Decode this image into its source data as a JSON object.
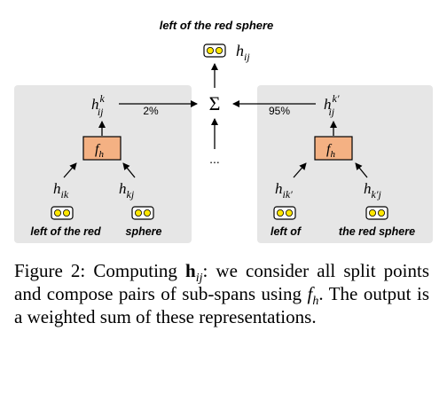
{
  "figure": {
    "top_phrase": "left of the red sphere",
    "top_vec": {
      "base": "h",
      "sub": "ij"
    },
    "sum_symbol": "Σ",
    "ellipsis": "...",
    "left_panel": {
      "out": {
        "base": "h",
        "sub": "ij",
        "sup": "k"
      },
      "weight": "2%",
      "fn": {
        "base": "f",
        "sub": "h"
      },
      "in_left": {
        "base": "h",
        "sub": "ik"
      },
      "in_right": {
        "base": "h",
        "sub": "kj"
      },
      "phrase_left": "left of the red",
      "phrase_right": "sphere"
    },
    "right_panel": {
      "out": {
        "base": "h",
        "sub": "ij",
        "sup": "k′"
      },
      "weight": "95%",
      "fn": {
        "base": "f",
        "sub": "h"
      },
      "in_left": {
        "base": "h",
        "sub": "ik′"
      },
      "in_right": {
        "base": "h",
        "sub": "k′j"
      },
      "phrase_left": "left of",
      "phrase_right": "the red sphere"
    },
    "colors": {
      "panel": "#e6e6e6",
      "fn_box": "#f4b183",
      "vec_fill": "#ffe600",
      "arrow": "#000000"
    }
  },
  "caption": {
    "label": "Figure 2:",
    "t1": " Computing ",
    "bold": "h",
    "sub": "ij",
    "t2": ": we consider all split points and compose pairs of sub-spans using ",
    "f": "f",
    "fsub": "h",
    "t3": ". The output is a weighted sum of these representations."
  }
}
